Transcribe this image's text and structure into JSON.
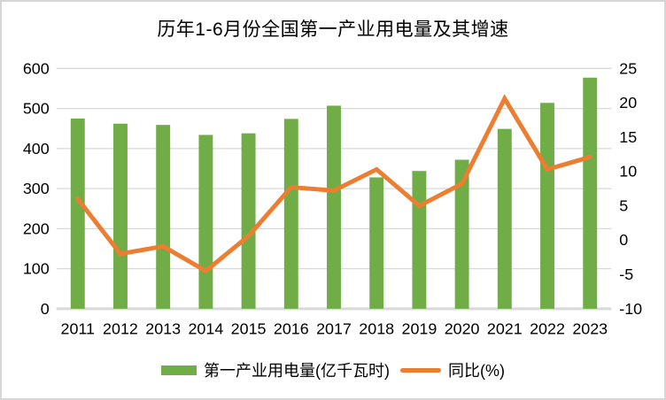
{
  "title": "历年1-6月份全国第一产业用电量及其增速",
  "legend": {
    "bar_label": "第一产业用电量(亿千瓦时)",
    "line_label": "同比(%)"
  },
  "colors": {
    "bar": "#70AD47",
    "line": "#ED7D31",
    "grid": "#D9D9D9",
    "axis_line": "#D9D9D9",
    "text": "#000000",
    "border": "#D6D6D6",
    "background": "#FFFFFF"
  },
  "chart_data": {
    "type": "bar+line",
    "categories": [
      "2011",
      "2012",
      "2013",
      "2014",
      "2015",
      "2016",
      "2017",
      "2018",
      "2019",
      "2020",
      "2021",
      "2022",
      "2023"
    ],
    "series": [
      {
        "name": "第一产业用电量(亿千瓦时)",
        "type": "bar",
        "axis": "left",
        "values": [
          475,
          462,
          459,
          434,
          438,
          474,
          507,
          328,
          344,
          372,
          449,
          514,
          577
        ]
      },
      {
        "name": "同比(%)",
        "type": "line",
        "axis": "right",
        "values": [
          6.0,
          -2.0,
          -0.9,
          -4.5,
          0.6,
          7.7,
          7.2,
          10.3,
          5.0,
          8.2,
          20.6,
          10.3,
          12.1
        ]
      }
    ],
    "left_axis": {
      "min": 0,
      "max": 600,
      "ticks": [
        0,
        100,
        200,
        300,
        400,
        500,
        600
      ]
    },
    "right_axis": {
      "min": -10,
      "max": 25,
      "ticks": [
        25,
        20,
        15,
        10,
        5,
        0,
        -5,
        -10
      ]
    },
    "grid": true,
    "legend_position": "bottom",
    "title": "历年1-6月份全国第一产业用电量及其增速"
  }
}
